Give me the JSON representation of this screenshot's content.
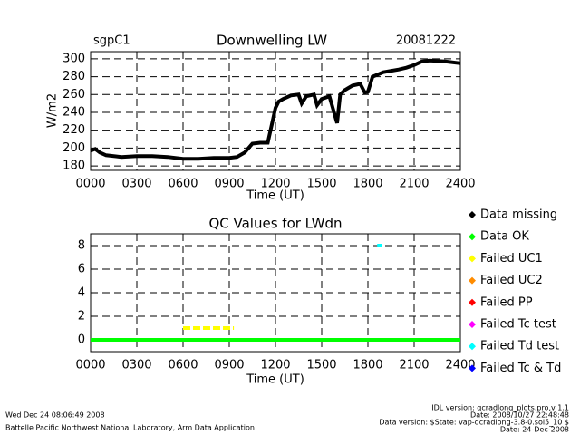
{
  "chart_data": [
    {
      "type": "line",
      "title": "Downwelling LW",
      "site": "sgpC1",
      "date": "20081222",
      "xlabel": "Time (UT)",
      "ylabel": "W/m2",
      "color": "#000000",
      "x": [
        0,
        0.3,
        0.6,
        1,
        2,
        3,
        4,
        5,
        6,
        7,
        8,
        9,
        9.5,
        10,
        10.5,
        11,
        11.5,
        12,
        12.2,
        12.5,
        13,
        13.5,
        13.7,
        14,
        14.5,
        14.7,
        15,
        15.5,
        16,
        16.2,
        16.5,
        17,
        17.5,
        17.8,
        18,
        18.3,
        19,
        20,
        20.5,
        21,
        21.5,
        22,
        23,
        24
      ],
      "values": [
        197,
        199,
        195,
        192,
        190,
        191,
        191,
        190,
        188,
        188,
        189,
        189,
        190,
        195,
        205,
        206,
        206,
        245,
        252,
        255,
        259,
        260,
        250,
        258,
        260,
        248,
        255,
        258,
        228,
        260,
        265,
        270,
        272,
        262,
        263,
        280,
        285,
        288,
        290,
        293,
        297,
        298,
        297,
        295
      ],
      "xlim": [
        0,
        24
      ],
      "xticks": [
        {
          "value": 0,
          "label": "0000"
        },
        {
          "value": 3,
          "label": "0300"
        },
        {
          "value": 6,
          "label": "0600"
        },
        {
          "value": 9,
          "label": "0900"
        },
        {
          "value": 12,
          "label": "1200"
        },
        {
          "value": 15,
          "label": "1500"
        },
        {
          "value": 18,
          "label": "1800"
        },
        {
          "value": 21,
          "label": "2100"
        },
        {
          "value": 24,
          "label": "2400"
        }
      ],
      "ylim": [
        175,
        308
      ],
      "yticks": [
        180,
        200,
        220,
        240,
        260,
        280,
        300
      ],
      "grid": true
    },
    {
      "type": "line",
      "title": "QC Values for LWdn",
      "xlabel": "Time (UT)",
      "legend": "right",
      "xlim": [
        0,
        24
      ],
      "xticks": [
        {
          "value": 0,
          "label": "0000"
        },
        {
          "value": 3,
          "label": "0300"
        },
        {
          "value": 6,
          "label": "0600"
        },
        {
          "value": 9,
          "label": "0900"
        },
        {
          "value": 12,
          "label": "1200"
        },
        {
          "value": 15,
          "label": "1500"
        },
        {
          "value": 18,
          "label": "1800"
        },
        {
          "value": 21,
          "label": "2100"
        },
        {
          "value": 24,
          "label": "2400"
        }
      ],
      "ylim": [
        -1,
        9
      ],
      "yticks": [
        0,
        2,
        4,
        6,
        8
      ],
      "grid": true,
      "series": [
        {
          "name": "Data missing",
          "color": "#000000",
          "x": [],
          "values": []
        },
        {
          "name": "Data OK",
          "color": "#00ff00",
          "x": [
            0,
            24
          ],
          "values": [
            0,
            0
          ]
        },
        {
          "name": "Failed UC1",
          "color": "#ffff00",
          "x": [
            6,
            9.3
          ],
          "values": [
            1,
            1
          ]
        },
        {
          "name": "Failed UC2",
          "color": "#ff8c00",
          "x": [],
          "values": []
        },
        {
          "name": "Failed PP",
          "color": "#ff0000",
          "x": [],
          "values": []
        },
        {
          "name": "Failed Tc test",
          "color": "#ff00ff",
          "x": [],
          "values": []
        },
        {
          "name": "Failed Td test",
          "color": "#00ffff",
          "x": [
            18.6,
            18.9
          ],
          "values": [
            8,
            8
          ]
        },
        {
          "name": "Failed Tc & Td",
          "color": "#0000ff",
          "x": [],
          "values": []
        }
      ]
    }
  ],
  "footer": {
    "timestamp": "Wed Dec 24 08:06:49 2008",
    "lab": "Battelle Pacific Northwest National Laboratory, Arm Data Application",
    "idl_version": "IDL version: qcradlong_plots.pro,v 1.1",
    "idl_date": "Date: 2008/10/27 22:48:48",
    "data_version": "Data version: $State: vap-qcradlong-3.8-0.sol5_10 $",
    "data_date": "Date: 24-Dec-2008"
  }
}
